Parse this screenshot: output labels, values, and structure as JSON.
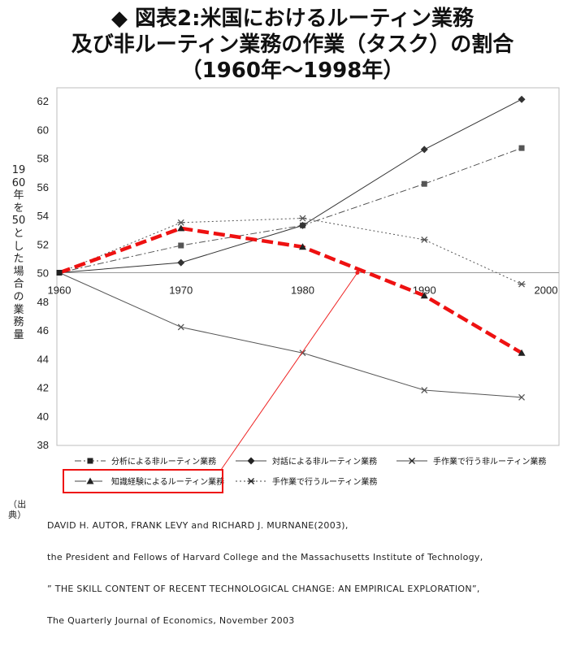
{
  "title": {
    "line1": "◆ 図表2:米国におけるルーティン業務",
    "line2": "及び非ルーティン業務の作業（タスク）の割合",
    "line3": "（1960年〜1998年）"
  },
  "y_axis_label": "1960年を50とした場合の業務量",
  "chart_data": {
    "type": "line",
    "title": "図表2:米国におけるルーティン業務及び非ルーティン業務の作業（タスク）の割合",
    "ylabel": "1960年を50とした場合の業務量",
    "x_ticks": [
      1960,
      1970,
      1980,
      1990,
      2000
    ],
    "x_tick_labels": [
      "1960",
      "1970",
      "1980",
      "1990",
      "2000"
    ],
    "y_ticks": [
      38,
      40,
      42,
      44,
      46,
      48,
      50,
      52,
      54,
      56,
      58,
      60,
      62
    ],
    "y_tick_labels": [
      "38",
      "40",
      "42",
      "44",
      "46",
      "48",
      "50",
      "52",
      "54",
      "56",
      "58",
      "60",
      "62"
    ],
    "xlim": [
      1960,
      2000
    ],
    "ylim": [
      38,
      63
    ],
    "grid": false,
    "legend_position": "bottom",
    "series": [
      {
        "name": "分析による非ルーティン業務",
        "x": [
          1960,
          1970,
          1980,
          1990,
          1998
        ],
        "values": [
          50,
          51.9,
          53.3,
          56.2,
          58.7
        ],
        "color": "#555555",
        "dash": "8,3,2,3",
        "marker": "square",
        "width": 1
      },
      {
        "name": "対話による非ルーティン業務",
        "x": [
          1960,
          1970,
          1980,
          1990,
          1998
        ],
        "values": [
          50,
          50.7,
          53.3,
          58.6,
          62.1
        ],
        "color": "#333333",
        "dash": "",
        "marker": "diamond",
        "width": 1
      },
      {
        "name": "手作業で行う非ルーティン業務",
        "x": [
          1960,
          1970,
          1980,
          1990,
          1998
        ],
        "values": [
          50,
          46.2,
          44.4,
          41.8,
          41.3
        ],
        "color": "#555555",
        "dash": "",
        "marker": "x",
        "width": 1
      },
      {
        "name": "知識経験によるルーティン業務",
        "x": [
          1960,
          1970,
          1980,
          1990,
          1998
        ],
        "values": [
          50,
          53.1,
          51.8,
          48.4,
          44.4
        ],
        "color": "#ee1111",
        "dash": "14,6",
        "marker": "triangle",
        "width": 4.5
      },
      {
        "name": "手作業で行うルーティン業務",
        "x": [
          1960,
          1970,
          1980,
          1990,
          1998
        ],
        "values": [
          50,
          53.5,
          53.8,
          52.3,
          49.2
        ],
        "color": "#555555",
        "dash": "2,3",
        "marker": "asterisk",
        "width": 1
      }
    ],
    "highlighted_series": "知識経験によるルーティン業務"
  },
  "source": {
    "label": "（出典）",
    "lines": [
      "DAVID H. AUTOR, FRANK LEVY and RICHARD J. MURNANE(2003),",
      "the President and Fellows of Harvard College and the Massachusetts Institute of Technology,",
      "” THE SKILL CONTENT OF RECENT TECHNOLOGICAL CHANGE: AN EMPIRICAL EXPLORATION”,",
      "The Quarterly Journal of Economics, November 2003"
    ]
  }
}
